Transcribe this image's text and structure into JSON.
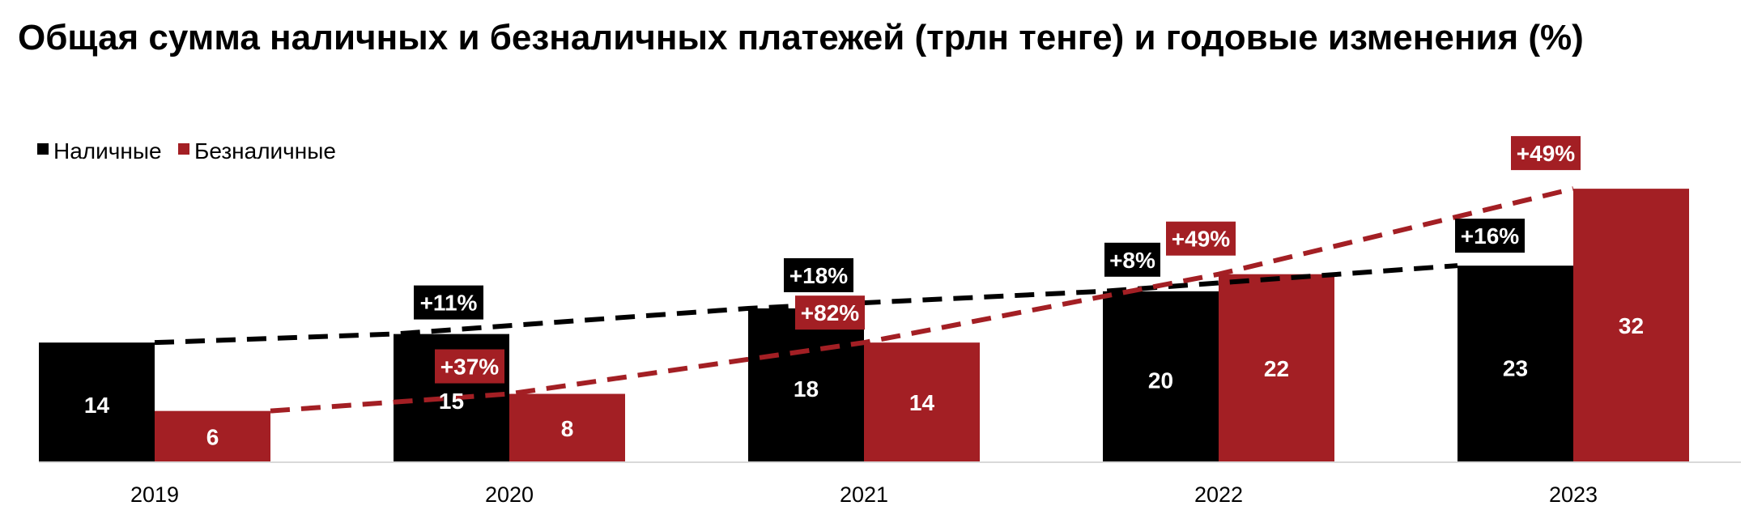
{
  "chart_data": {
    "type": "bar",
    "title": "Общая сумма наличных и безналичных платежей (трлн тенге) и годовые изменения (%)",
    "categories": [
      "2019",
      "2020",
      "2021",
      "2022",
      "2023"
    ],
    "series": [
      {
        "name": "Наличные",
        "color": "#000000",
        "values": [
          14,
          15,
          18,
          20,
          23
        ],
        "value_labels": [
          "14",
          "15",
          "18",
          "20",
          "23"
        ],
        "changes": [
          "",
          "+11%",
          "+18%",
          "+8%",
          "+16%"
        ]
      },
      {
        "name": "Безналичные",
        "color": "#a31f24",
        "values": [
          6,
          8,
          14,
          22,
          32
        ],
        "value_labels": [
          "6",
          "8",
          "14",
          "22",
          "32"
        ],
        "changes": [
          "",
          "+37%",
          "+82%",
          "+49%",
          "+49%"
        ]
      }
    ],
    "ylim": [
      0,
      34
    ],
    "legend_position": "top-left",
    "grid": false,
    "trend_lines": "dashed"
  }
}
